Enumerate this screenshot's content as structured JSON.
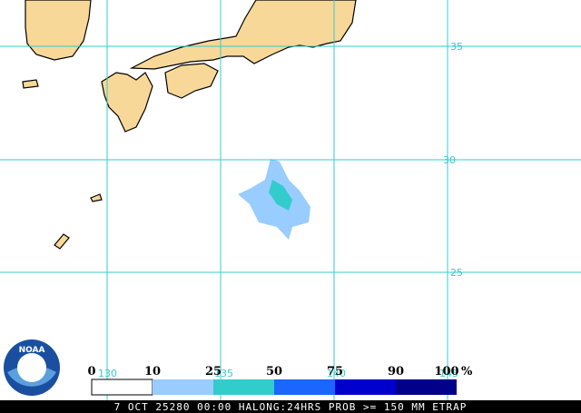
{
  "map": {
    "lat_labels": [
      "35",
      "30",
      "25"
    ],
    "lon_labels": [
      "130",
      "135",
      "140",
      "145"
    ],
    "legend": {
      "ticks": [
        "0",
        "10",
        "25",
        "50",
        "75",
        "90",
        "100"
      ],
      "unit": "%"
    },
    "logo": "NOAA",
    "caption": "7 OCT 25280 00:00 HALONG:24HRS PROB >= 150 MM ETRAP"
  }
}
